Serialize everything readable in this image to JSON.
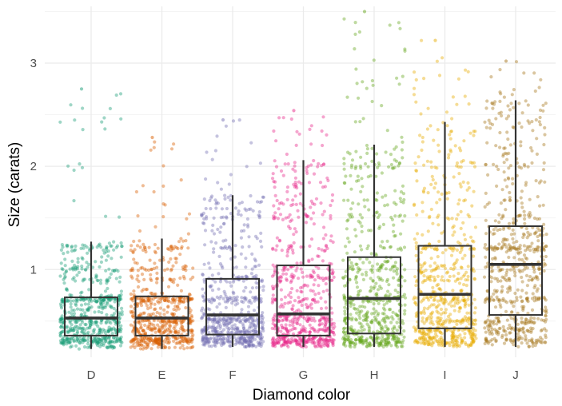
{
  "chart_data": {
    "type": "box",
    "overlay": "jittered-points",
    "xlabel": "Diamond color",
    "ylabel": "Size (carats)",
    "ylim": [
      0.15,
      3.55
    ],
    "yticks": [
      1,
      2,
      3
    ],
    "y_minor_gridlines": [
      0.5,
      1.5,
      2.5,
      3.5
    ],
    "grid": true,
    "theme": "minimal",
    "categories": [
      "D",
      "E",
      "F",
      "G",
      "H",
      "I",
      "J"
    ],
    "colors": [
      "#1B9E77",
      "#D95F02",
      "#7570B3",
      "#E7298A",
      "#66A61E",
      "#E6AB02",
      "#A6761D"
    ],
    "boxes": [
      {
        "category": "D",
        "lower_whisker": 0.23,
        "q1": 0.36,
        "median": 0.53,
        "q3": 0.73,
        "upper_whisker": 1.27,
        "max_point": 2.75
      },
      {
        "category": "E",
        "lower_whisker": 0.23,
        "q1": 0.36,
        "median": 0.53,
        "q3": 0.74,
        "upper_whisker": 1.3,
        "max_point": 2.28
      },
      {
        "category": "F",
        "lower_whisker": 0.25,
        "q1": 0.37,
        "median": 0.56,
        "q3": 0.91,
        "upper_whisker": 1.72,
        "max_point": 2.45
      },
      {
        "category": "G",
        "lower_whisker": 0.25,
        "q1": 0.36,
        "median": 0.57,
        "q3": 1.04,
        "upper_whisker": 2.06,
        "max_point": 2.54
      },
      {
        "category": "H",
        "lower_whisker": 0.25,
        "q1": 0.38,
        "median": 0.72,
        "q3": 1.12,
        "upper_whisker": 2.21,
        "max_point": 3.5
      },
      {
        "category": "I",
        "lower_whisker": 0.25,
        "q1": 0.43,
        "median": 0.76,
        "q3": 1.23,
        "upper_whisker": 2.43,
        "max_point": 3.22
      },
      {
        "category": "J",
        "lower_whisker": 0.25,
        "q1": 0.56,
        "median": 1.05,
        "q3": 1.42,
        "upper_whisker": 2.64,
        "max_point": 3.02
      }
    ]
  }
}
